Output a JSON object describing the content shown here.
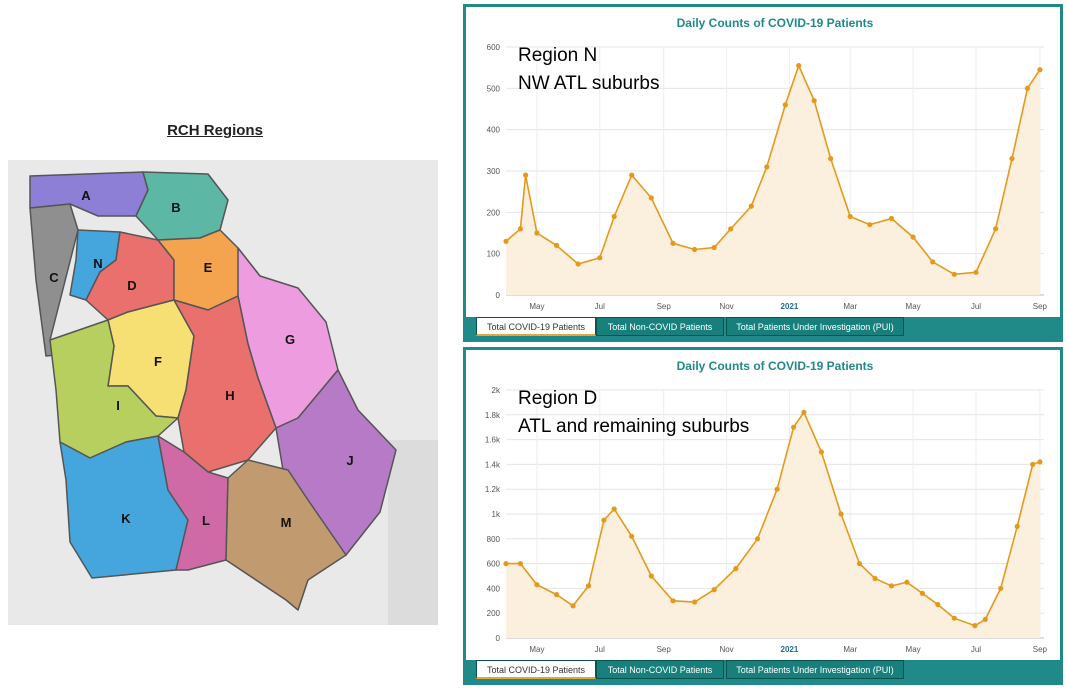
{
  "map": {
    "title": "RCH Regions",
    "regions": [
      {
        "id": "A",
        "color": "#8d7fd6"
      },
      {
        "id": "B",
        "color": "#5cb8a4"
      },
      {
        "id": "C",
        "color": "#8f8f8f"
      },
      {
        "id": "N",
        "color": "#45a6dd"
      },
      {
        "id": "D",
        "color": "#e9706c"
      },
      {
        "id": "E",
        "color": "#f4a44f"
      },
      {
        "id": "G",
        "color": "#ee9ce0"
      },
      {
        "id": "F",
        "color": "#f6df73"
      },
      {
        "id": "H",
        "color": "#e9706c"
      },
      {
        "id": "I",
        "color": "#b7cf5f"
      },
      {
        "id": "J",
        "color": "#b77ac7"
      },
      {
        "id": "K",
        "color": "#45a6dd"
      },
      {
        "id": "L",
        "color": "#cf6aa7"
      },
      {
        "id": "M",
        "color": "#c29a70"
      }
    ]
  },
  "chart_data": [
    {
      "type": "area",
      "title": "Daily Counts of COVID-19 Patients",
      "annotation": [
        "Region N",
        "NW ATL suburbs"
      ],
      "y_ticks": [
        "0",
        "100",
        "200",
        "300",
        "400",
        "500",
        "600"
      ],
      "ylim": [
        0,
        600
      ],
      "x_ticks": [
        "May",
        "Jul",
        "Sep",
        "Nov",
        "2021",
        "Mar",
        "May",
        "Jul",
        "Sep"
      ],
      "x": [
        "2020-04-01",
        "2020-04-15",
        "2020-04-20",
        "2020-05-01",
        "2020-05-20",
        "2020-06-10",
        "2020-07-01",
        "2020-07-15",
        "2020-08-01",
        "2020-08-20",
        "2020-09-10",
        "2020-10-01",
        "2020-10-20",
        "2020-11-05",
        "2020-11-25",
        "2020-12-10",
        "2020-12-28",
        "2021-01-10",
        "2021-01-25",
        "2021-02-10",
        "2021-03-01",
        "2021-03-20",
        "2021-04-10",
        "2021-05-01",
        "2021-05-20",
        "2021-06-10",
        "2021-07-01",
        "2021-07-20",
        "2021-08-05",
        "2021-08-20",
        "2021-09-01"
      ],
      "series": [
        {
          "values": [
            130,
            160,
            290,
            150,
            120,
            75,
            90,
            190,
            290,
            235,
            125,
            110,
            115,
            160,
            215,
            310,
            460,
            555,
            470,
            330,
            190,
            170,
            185,
            140,
            80,
            50,
            55,
            160,
            330,
            500,
            545
          ]
        }
      ],
      "tabs": [
        "Total COVID-19 Patients",
        "Total Non-COVID Patients",
        "Total Patients Under Investigation (PUI)"
      ],
      "active_tab": 0,
      "colors": {
        "line": "#e39a1c",
        "fill": "#fbf0de"
      }
    },
    {
      "type": "area",
      "title": "Daily Counts of COVID-19 Patients",
      "annotation": [
        "Region D",
        "ATL and remaining suburbs"
      ],
      "y_ticks": [
        "0",
        "200",
        "400",
        "600",
        "800",
        "1k",
        "1.2k",
        "1.4k",
        "1.6k",
        "1.8k",
        "2k"
      ],
      "ylim": [
        0,
        2000
      ],
      "x_ticks": [
        "May",
        "Jul",
        "Sep",
        "Nov",
        "2021",
        "Mar",
        "May",
        "Jul",
        "Sep"
      ],
      "x": [
        "2020-04-01",
        "2020-04-15",
        "2020-05-01",
        "2020-05-20",
        "2020-06-05",
        "2020-06-20",
        "2020-07-05",
        "2020-07-15",
        "2020-08-01",
        "2020-08-20",
        "2020-09-10",
        "2020-10-01",
        "2020-10-20",
        "2020-11-10",
        "2020-12-01",
        "2020-12-20",
        "2021-01-05",
        "2021-01-15",
        "2021-02-01",
        "2021-02-20",
        "2021-03-10",
        "2021-03-25",
        "2021-04-10",
        "2021-04-25",
        "2021-05-10",
        "2021-05-25",
        "2021-06-10",
        "2021-06-30",
        "2021-07-10",
        "2021-07-25",
        "2021-08-10",
        "2021-08-25",
        "2021-09-01"
      ],
      "series": [
        {
          "values": [
            600,
            600,
            430,
            350,
            260,
            420,
            950,
            1040,
            820,
            500,
            300,
            290,
            390,
            560,
            800,
            1200,
            1700,
            1820,
            1500,
            1000,
            600,
            480,
            420,
            450,
            360,
            270,
            160,
            100,
            150,
            400,
            900,
            1400,
            1420
          ]
        }
      ],
      "tabs": [
        "Total COVID-19 Patients",
        "Total Non-COVID Patients",
        "Total Patients Under Investigation (PUI)"
      ],
      "active_tab": 0,
      "colors": {
        "line": "#e39a1c",
        "fill": "#fbf0de"
      }
    }
  ]
}
